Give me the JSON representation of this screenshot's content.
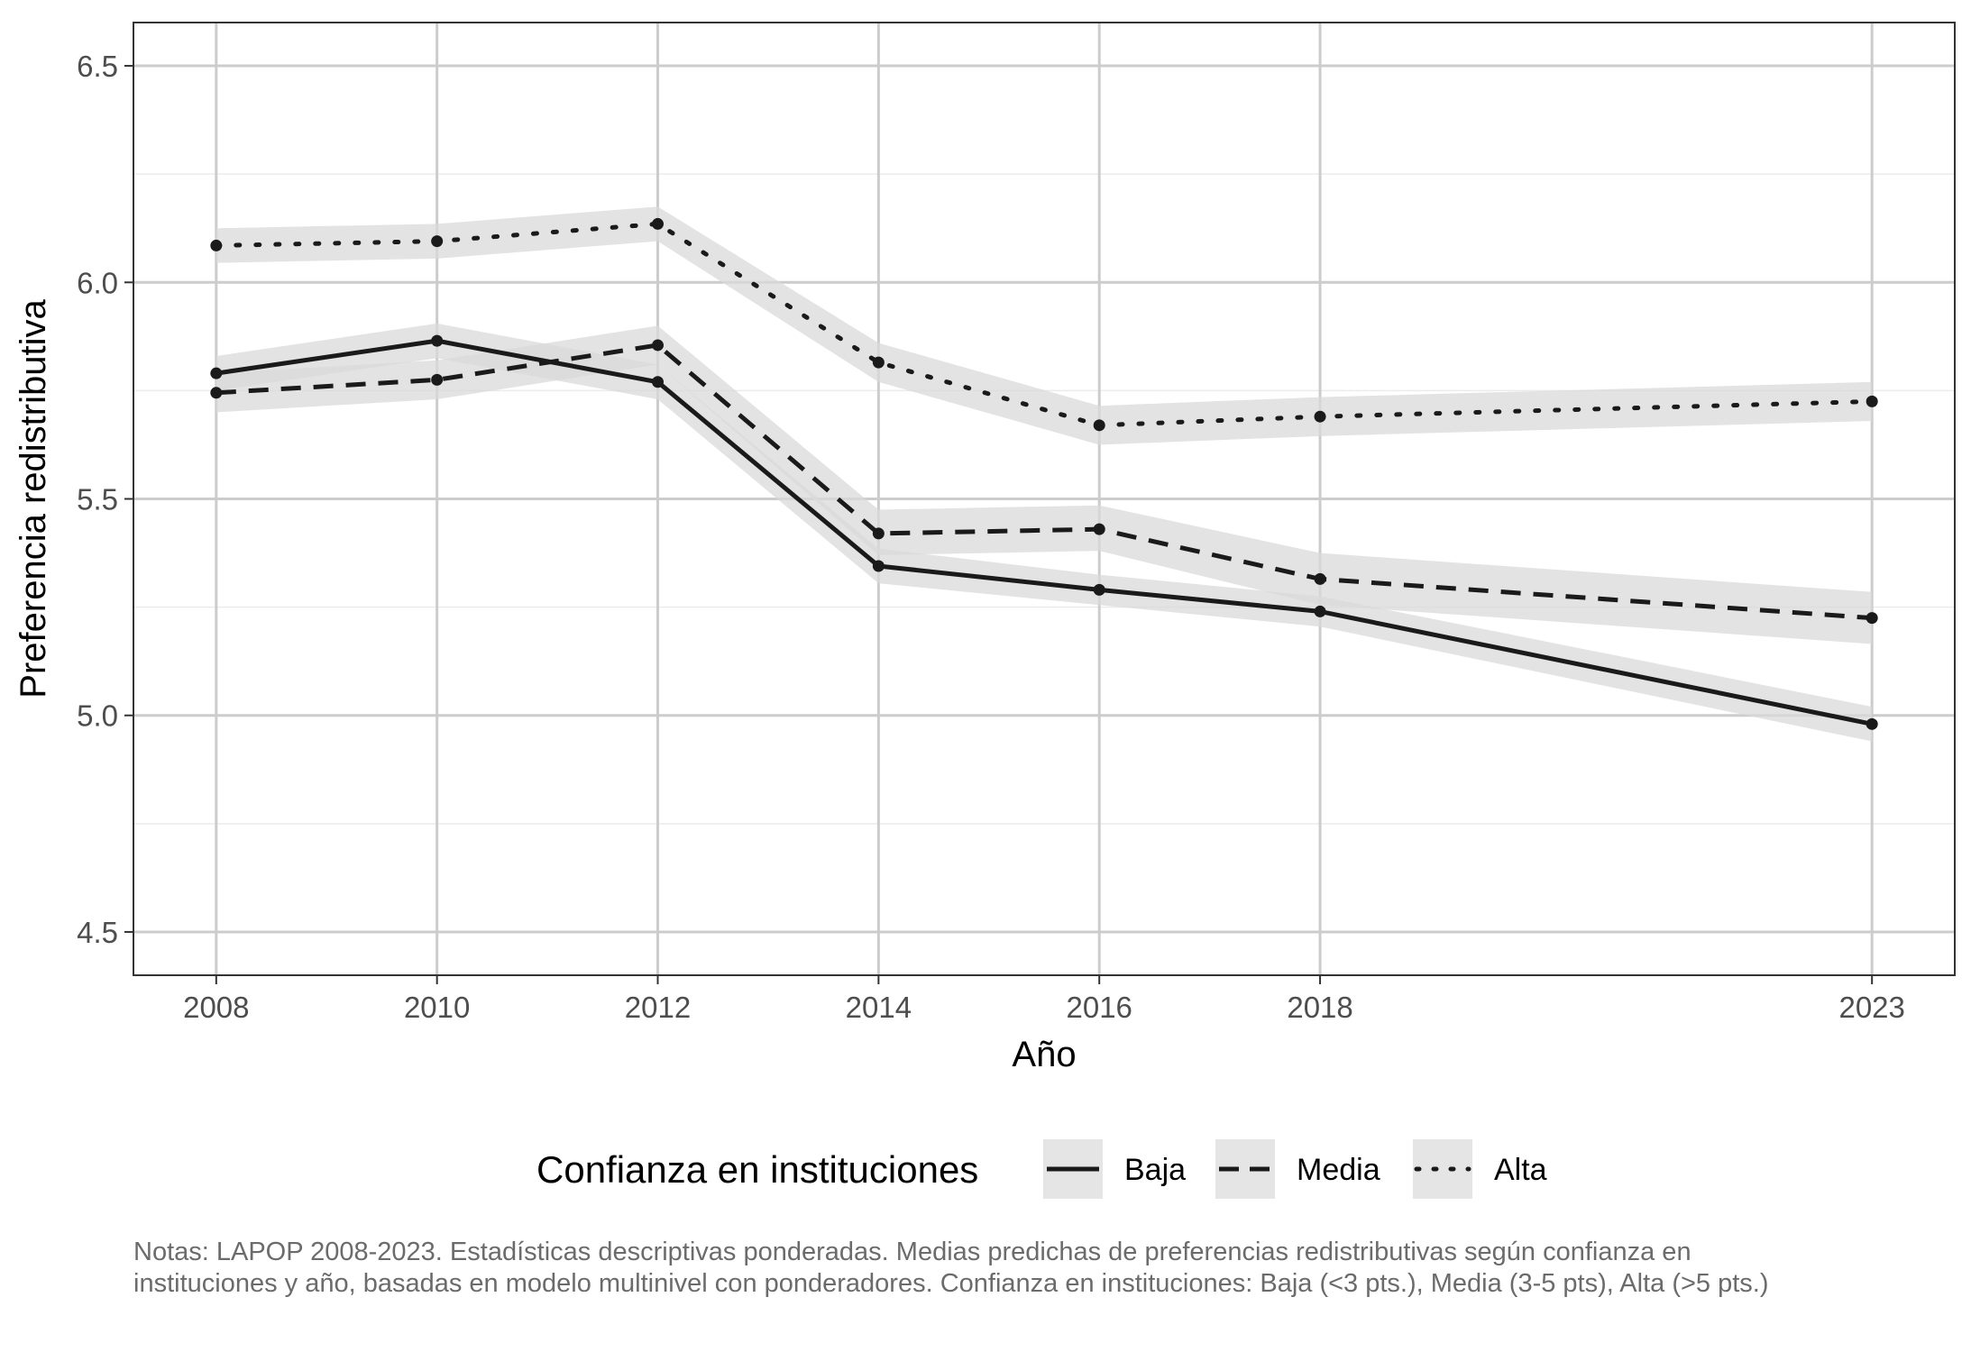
{
  "chart_data": {
    "type": "line",
    "x": [
      2008,
      2010,
      2012,
      2014,
      2016,
      2018,
      2023
    ],
    "xlabel": "Año",
    "ylabel": "Preferencia redistributiva",
    "xlim": [
      2007.25,
      2023.75
    ],
    "ylim": [
      4.4,
      6.6
    ],
    "yticks": [
      4.5,
      5.0,
      5.5,
      6.0,
      6.5
    ],
    "ytick_labels": [
      "4.5",
      "5.0",
      "5.5",
      "6.0",
      "6.5"
    ],
    "xtick_labels": [
      "2008",
      "2010",
      "2012",
      "2014",
      "2016",
      "2018",
      "2023"
    ],
    "grid": true,
    "legend": {
      "title": "Confianza en instituciones",
      "placement": "bottom"
    },
    "series": [
      {
        "name": "Baja",
        "linetype": "solid",
        "values": [
          5.79,
          5.865,
          5.77,
          5.345,
          5.29,
          5.24,
          4.98
        ],
        "ci_low": [
          5.75,
          5.825,
          5.73,
          5.305,
          5.255,
          5.205,
          4.94
        ],
        "ci_high": [
          5.83,
          5.905,
          5.81,
          5.385,
          5.325,
          5.275,
          5.02
        ]
      },
      {
        "name": "Media",
        "linetype": "dashed",
        "values": [
          5.745,
          5.775,
          5.855,
          5.42,
          5.43,
          5.315,
          5.225
        ],
        "ci_low": [
          5.7,
          5.73,
          5.81,
          5.37,
          5.38,
          5.255,
          5.165
        ],
        "ci_high": [
          5.79,
          5.82,
          5.9,
          5.475,
          5.485,
          5.375,
          5.285
        ]
      },
      {
        "name": "Alta",
        "linetype": "dotted",
        "values": [
          6.085,
          6.095,
          6.135,
          5.815,
          5.67,
          5.69,
          5.725
        ],
        "ci_low": [
          6.045,
          6.055,
          6.095,
          5.77,
          5.625,
          5.645,
          5.68
        ],
        "ci_high": [
          6.125,
          6.135,
          6.175,
          5.86,
          5.715,
          5.735,
          5.77
        ]
      }
    ],
    "colors": {
      "line": "#1a1a1a",
      "ribbon": "#d9d9d9",
      "grid_major": "#cccccc",
      "grid_minor": "#ebebeb",
      "panel_border": "#333333",
      "legend_key_bg": "#e5e5e5"
    }
  },
  "caption": "Notas: LAPOP 2008-2023. Estadísticas descriptivas ponderadas. Medias predichas de preferencias redistributivas según confianza en instituciones y año, basadas en modelo multinivel con ponderadores. Confianza en instituciones: Baja (<3 pts.), Media (3-5 pts), Alta (>5 pts.)"
}
